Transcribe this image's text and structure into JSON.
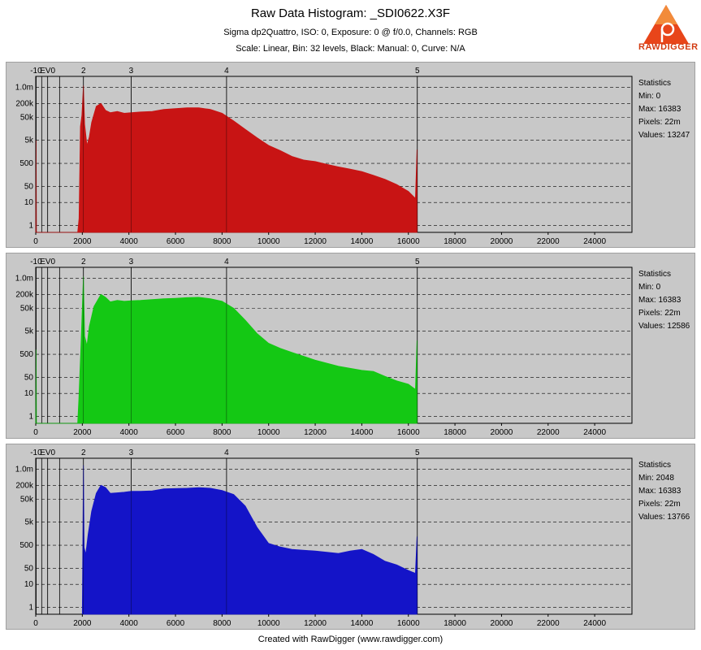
{
  "header": {
    "title": "Raw Data Histogram: _SDI0622.X3F",
    "subtitle1": "Sigma dp2Quattro, ISO: 0, Exposure: 0 @ f/0.0, Channels: RGB",
    "subtitle2": "Scale: Linear, Bin: 32 levels, Black: Manual: 0, Curve: N/A"
  },
  "logo": {
    "text": "RAWDIGGER",
    "icon": "rawdigger-logo-icon",
    "color": "#d23b12"
  },
  "footer": {
    "text": "Created with RawDigger (www.rawdigger.com)"
  },
  "chart_data": [
    {
      "type": "area",
      "channel": "red",
      "color": "#c81414",
      "background": "#c8c8c8",
      "x_ticks": [
        0,
        2000,
        4000,
        6000,
        8000,
        10000,
        12000,
        14000,
        16000,
        18000,
        20000,
        22000,
        24000
      ],
      "xlim": [
        0,
        25600
      ],
      "y_scale": "log",
      "y_ticks": [
        "1.0m",
        "200k",
        "50k",
        "5k",
        "500",
        "50",
        "10",
        "1"
      ],
      "y_tick_values": [
        1000000,
        200000,
        50000,
        5000,
        500,
        50,
        10,
        1
      ],
      "ylim": [
        0.5,
        3000000
      ],
      "ev_marks": [
        {
          "label": "-10",
          "x": 16
        },
        {
          "label": "EV0",
          "x": 512
        },
        {
          "label": "2",
          "x": 2048
        },
        {
          "label": "3",
          "x": 4096
        },
        {
          "label": "4",
          "x": 8192
        },
        {
          "label": "5",
          "x": 16383
        }
      ],
      "ev_extra_lines": [
        256,
        1024
      ],
      "x": [
        0,
        16,
        32,
        1800,
        1860,
        1920,
        1980,
        2048,
        2100,
        2200,
        2300,
        2400,
        2600,
        2800,
        3000,
        3200,
        3500,
        3800,
        4100,
        4500,
        5000,
        5500,
        6000,
        6500,
        7000,
        7500,
        8000,
        8500,
        9000,
        9500,
        10000,
        10500,
        11000,
        11500,
        12000,
        12500,
        13000,
        13500,
        14000,
        14500,
        15000,
        15500,
        16000,
        16300,
        16370,
        16383,
        16390
      ],
      "values": [
        0,
        5000,
        0,
        0,
        2,
        20000,
        60000,
        1200000,
        25000,
        3000,
        7000,
        30000,
        150000,
        200000,
        100000,
        80000,
        90000,
        75000,
        80000,
        85000,
        90000,
        110000,
        120000,
        130000,
        130000,
        110000,
        75000,
        35000,
        15000,
        6500,
        3000,
        1800,
        1000,
        700,
        600,
        450,
        350,
        280,
        220,
        150,
        100,
        60,
        30,
        15,
        2000,
        0,
        0
      ],
      "statistics": {
        "title": "Statistics",
        "min": "Min: 0",
        "max": "Max: 16383",
        "pixels": "Pixels: 22m",
        "values": "Values: 13247"
      }
    },
    {
      "type": "area",
      "channel": "green",
      "color": "#14c814",
      "background": "#c8c8c8",
      "x_ticks": [
        0,
        2000,
        4000,
        6000,
        8000,
        10000,
        12000,
        14000,
        16000,
        18000,
        20000,
        22000,
        24000
      ],
      "xlim": [
        0,
        25600
      ],
      "y_scale": "log",
      "y_ticks": [
        "1.0m",
        "200k",
        "50k",
        "5k",
        "500",
        "50",
        "10",
        "1"
      ],
      "y_tick_values": [
        1000000,
        200000,
        50000,
        5000,
        500,
        50,
        10,
        1
      ],
      "ylim": [
        0.5,
        3000000
      ],
      "ev_marks": [
        {
          "label": "-10",
          "x": 16
        },
        {
          "label": "EV0",
          "x": 512
        },
        {
          "label": "2",
          "x": 2048
        },
        {
          "label": "3",
          "x": 4096
        },
        {
          "label": "4",
          "x": 8192
        },
        {
          "label": "5",
          "x": 16383
        }
      ],
      "ev_extra_lines": [
        256,
        1024
      ],
      "x": [
        0,
        16,
        32,
        1800,
        1850,
        1950,
        2048,
        2100,
        2200,
        2300,
        2500,
        2800,
        3000,
        3200,
        3500,
        3800,
        4100,
        4500,
        5000,
        5500,
        6000,
        6500,
        7000,
        7500,
        8000,
        8500,
        9000,
        9500,
        10000,
        10500,
        11000,
        12000,
        13000,
        14000,
        14500,
        15000,
        15500,
        16000,
        16300,
        16370,
        16383,
        16390
      ],
      "values": [
        0,
        800,
        0,
        0,
        5,
        2000,
        1200000,
        3000,
        1200,
        8000,
        60000,
        200000,
        150000,
        95000,
        110000,
        100000,
        105000,
        110000,
        120000,
        130000,
        135000,
        145000,
        150000,
        130000,
        100000,
        50000,
        15000,
        4000,
        1500,
        900,
        600,
        280,
        150,
        100,
        90,
        55,
        35,
        25,
        15,
        2000,
        0,
        0
      ],
      "statistics": {
        "title": "Statistics",
        "min": "Min: 0",
        "max": "Max: 16383",
        "pixels": "Pixels: 22m",
        "values": "Values: 12586"
      }
    },
    {
      "type": "area",
      "channel": "blue",
      "color": "#1414c8",
      "background": "#c8c8c8",
      "x_ticks": [
        0,
        2000,
        4000,
        6000,
        8000,
        10000,
        12000,
        14000,
        16000,
        18000,
        20000,
        22000,
        24000
      ],
      "xlim": [
        0,
        25600
      ],
      "y_scale": "log",
      "y_ticks": [
        "1.0m",
        "200k",
        "50k",
        "5k",
        "500",
        "50",
        "10",
        "1"
      ],
      "y_tick_values": [
        1000000,
        200000,
        50000,
        5000,
        500,
        50,
        10,
        1
      ],
      "ylim": [
        0.5,
        3000000
      ],
      "ev_marks": [
        {
          "label": "-10",
          "x": 16
        },
        {
          "label": "EV0",
          "x": 512
        },
        {
          "label": "2",
          "x": 2048
        },
        {
          "label": "3",
          "x": 4096
        },
        {
          "label": "4",
          "x": 8192
        },
        {
          "label": "5",
          "x": 16383
        }
      ],
      "ev_extra_lines": [
        256,
        1024
      ],
      "x": [
        2000,
        2048,
        2080,
        2150,
        2250,
        2400,
        2600,
        2800,
        3000,
        3200,
        3500,
        3800,
        4100,
        4500,
        5000,
        5500,
        6000,
        6500,
        7000,
        7500,
        8000,
        8500,
        9000,
        9500,
        10000,
        10500,
        11000,
        12000,
        13000,
        13500,
        14000,
        14500,
        15000,
        15500,
        16000,
        16300,
        16370,
        16383,
        16390
      ],
      "values": [
        0,
        1500000,
        400,
        200,
        1500,
        15000,
        90000,
        200000,
        160000,
        90000,
        95000,
        100000,
        110000,
        110000,
        115000,
        140000,
        145000,
        150000,
        160000,
        150000,
        120000,
        80000,
        25000,
        3000,
        600,
        420,
        330,
        280,
        220,
        280,
        330,
        200,
        100,
        70,
        40,
        30,
        1200,
        0,
        0
      ],
      "statistics": {
        "title": "Statistics",
        "min": "Min: 2048",
        "max": "Max: 16383",
        "pixels": "Pixels: 22m",
        "values": "Values: 13766"
      }
    }
  ]
}
